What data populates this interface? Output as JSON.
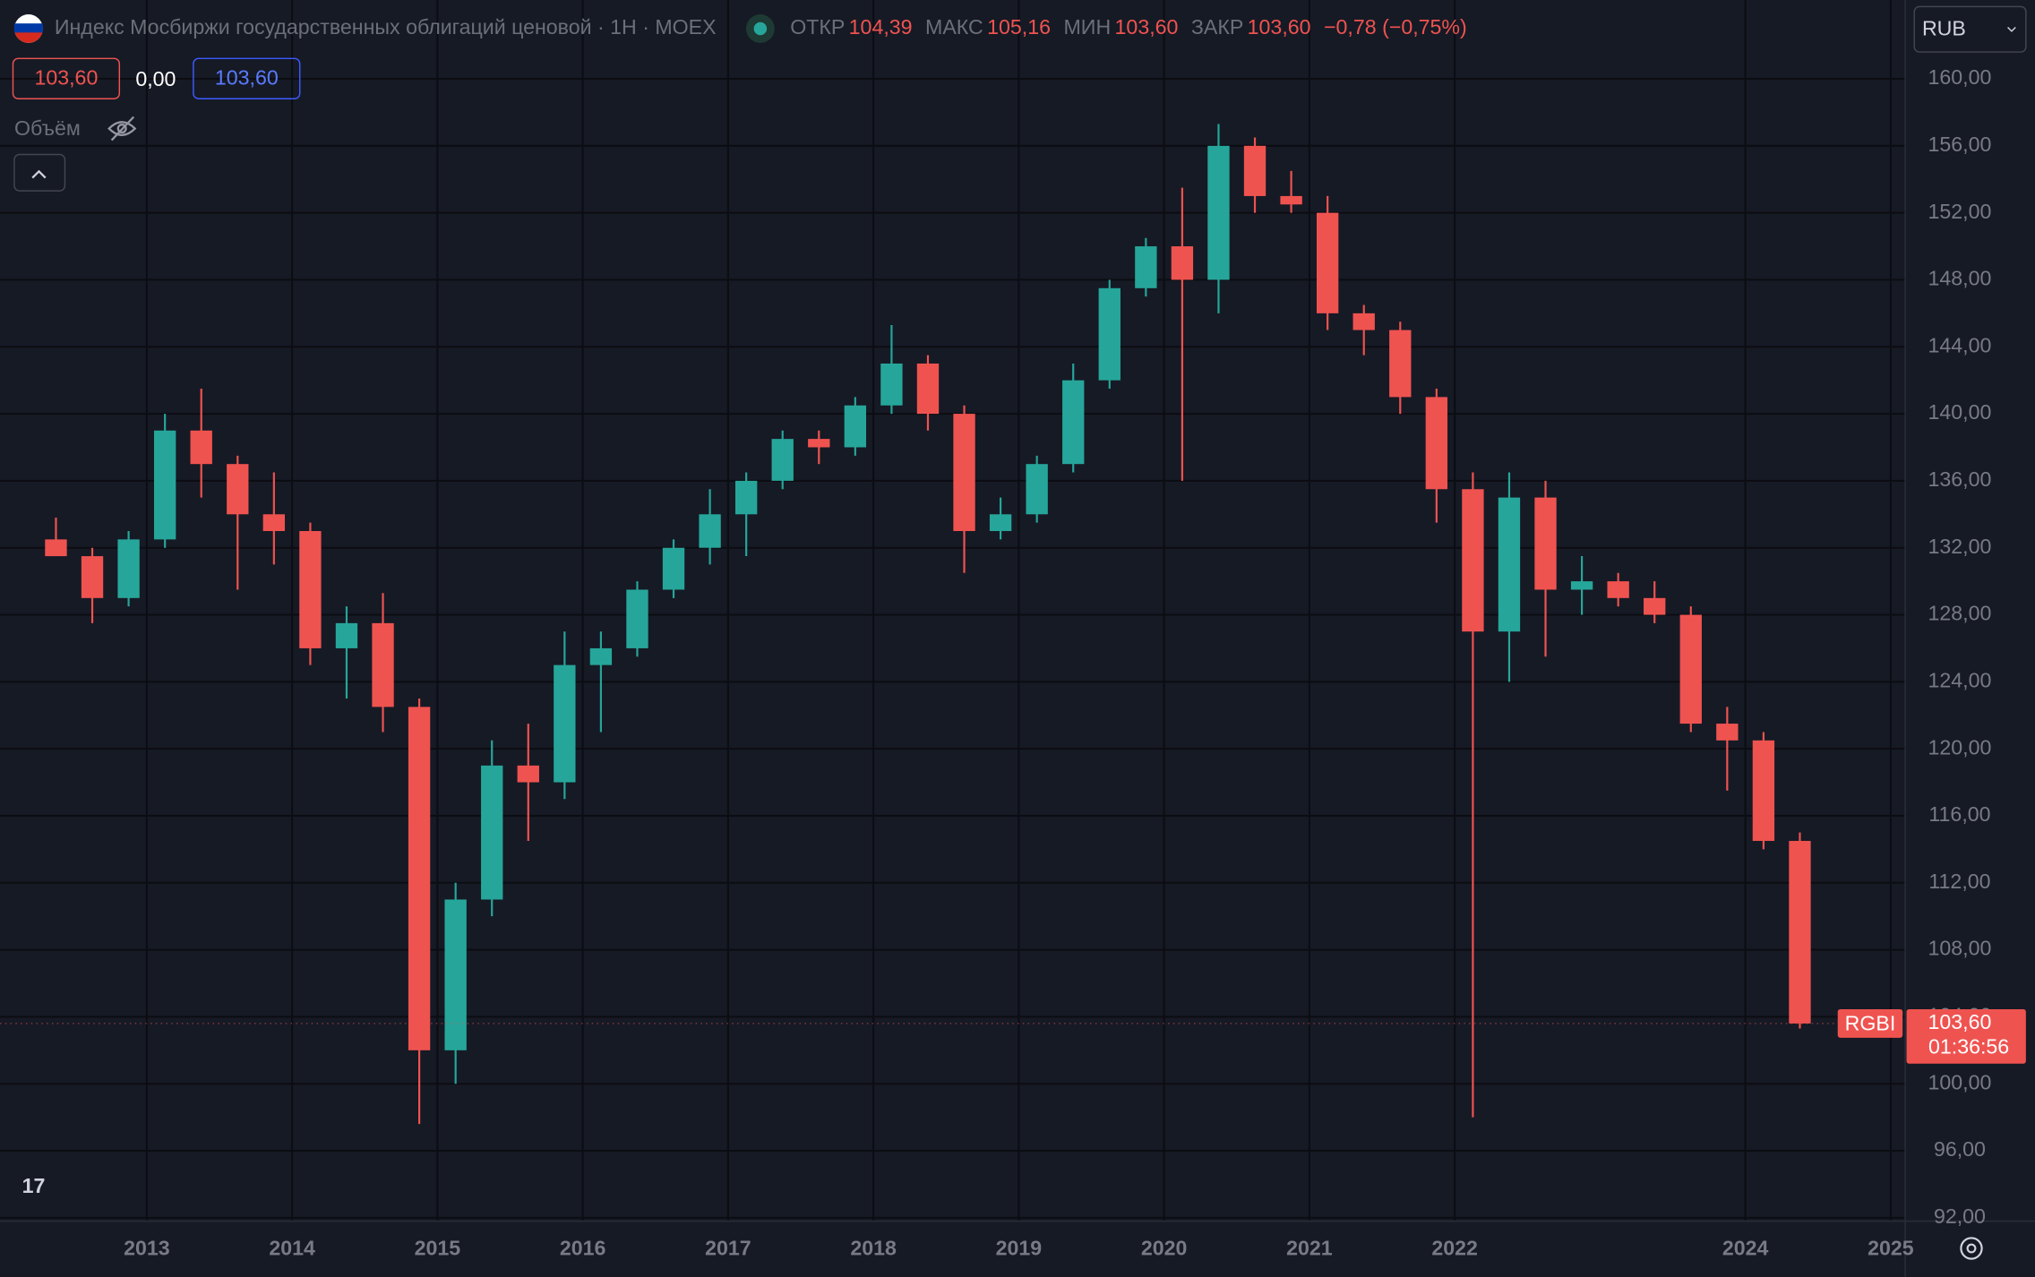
{
  "header": {
    "title": "Индекс Мосбиржи государственных облигаций ценовой · 1Н · MOEX",
    "open_label": "ОТКР",
    "open": "104,39",
    "high_label": "МАКС",
    "high": "105,16",
    "low_label": "МИН",
    "low": "103,60",
    "close_label": "ЗАКР",
    "close": "103,60",
    "change": "−0,78 (−0,75%)",
    "legend_values": [
      "103,60",
      "0,00",
      "103,60"
    ],
    "volume_label": "Объём",
    "currency": "RUB"
  },
  "chart_data": {
    "type": "candlestick",
    "up_color": "#26a69a",
    "down_color": "#ef5350",
    "x": [
      2012.25,
      2012.5,
      2012.75,
      2013.0,
      2013.25,
      2013.5,
      2013.75,
      2014.0,
      2014.25,
      2014.5,
      2014.75,
      2015.0,
      2015.25,
      2015.5,
      2015.75,
      2016.0,
      2016.25,
      2016.5,
      2016.75,
      2017.0,
      2017.25,
      2017.5,
      2017.75,
      2018.0,
      2018.25,
      2018.5,
      2018.75,
      2019.0,
      2019.25,
      2019.5,
      2019.75,
      2020.0,
      2020.25,
      2020.5,
      2020.75,
      2021.0,
      2021.25,
      2021.5,
      2021.75,
      2022.0,
      2022.25,
      2022.5,
      2022.75,
      2023.0,
      2023.25,
      2023.5,
      2023.75,
      2024.0,
      2024.25
    ],
    "open": [
      132.5,
      131.5,
      129,
      132.5,
      139,
      137,
      134,
      133,
      126,
      127.5,
      122.5,
      102,
      111,
      119,
      118,
      125,
      126,
      129.5,
      132,
      134,
      136,
      138.5,
      138,
      140.5,
      143,
      140,
      133,
      134,
      137,
      142,
      147.5,
      150,
      148,
      156,
      153,
      152,
      146,
      145,
      141,
      135.5,
      127,
      135,
      129.5,
      130,
      129,
      128,
      121.5,
      120.5,
      114.5
    ],
    "high": [
      133.8,
      132,
      133,
      140,
      141.5,
      137.5,
      136.5,
      133.5,
      128.5,
      129.3,
      123,
      112,
      120.5,
      121.5,
      127,
      127,
      130,
      132.5,
      135.5,
      136.5,
      139,
      139,
      141,
      145.3,
      143.5,
      140.5,
      135,
      137.5,
      143,
      148,
      150.5,
      153.5,
      157.3,
      156.5,
      154.5,
      153,
      146.5,
      145.5,
      141.5,
      136.5,
      136.5,
      136,
      131.5,
      130.5,
      130,
      128.5,
      122.5,
      121,
      115
    ],
    "low": [
      131.5,
      127.5,
      128.5,
      132,
      135,
      129.5,
      131,
      125,
      123,
      121,
      97.6,
      100,
      110,
      114.5,
      117,
      121,
      125.5,
      129,
      131,
      131.5,
      135.5,
      137,
      137.5,
      140,
      139,
      130.5,
      132.5,
      133.5,
      136.5,
      141.5,
      147,
      136,
      146,
      152,
      152,
      145,
      143.5,
      140,
      133.5,
      98,
      124,
      125.5,
      128,
      128.5,
      127.5,
      121,
      117.5,
      114,
      103.3
    ],
    "close": [
      131.5,
      129,
      132.5,
      139,
      137,
      134,
      133,
      126,
      127.5,
      122.5,
      102,
      111,
      119,
      118,
      125,
      126,
      129.5,
      132,
      134,
      136,
      138.5,
      138,
      140.5,
      143,
      140,
      133,
      134,
      137,
      142,
      147.5,
      150,
      148,
      156,
      153,
      152.5,
      146,
      145,
      141,
      135.5,
      127,
      135,
      129.5,
      130,
      129,
      128,
      121.5,
      120.5,
      114.5,
      103.6
    ],
    "xlim": [
      2011.99,
      2025.1
    ],
    "ylim": [
      91.8,
      164.7
    ],
    "xticks": [
      2013,
      2014,
      2015,
      2016,
      2017,
      2018,
      2019,
      2020,
      2021,
      2022,
      2024,
      2025
    ],
    "yticks": [
      {
        "value": 92,
        "label": "92,00"
      },
      {
        "value": 96,
        "label": "96,00"
      },
      {
        "value": 100,
        "label": "100,00"
      },
      {
        "value": 104,
        "label": "104,00"
      },
      {
        "value": 108,
        "label": "108,00"
      },
      {
        "value": 112,
        "label": "112,00"
      },
      {
        "value": 116,
        "label": "116,00"
      },
      {
        "value": 120,
        "label": "120,00"
      },
      {
        "value": 124,
        "label": "124,00"
      },
      {
        "value": 128,
        "label": "128,00"
      },
      {
        "value": 132,
        "label": "132,00"
      },
      {
        "value": 136,
        "label": "136,00"
      },
      {
        "value": 140,
        "label": "140,00"
      },
      {
        "value": 144,
        "label": "144,00"
      },
      {
        "value": 148,
        "label": "148,00"
      },
      {
        "value": 152,
        "label": "152,00"
      },
      {
        "value": 156,
        "label": "156,00"
      },
      {
        "value": 160,
        "label": "160,00"
      }
    ],
    "grid": true,
    "price_label": {
      "symbol": "RGBI",
      "value": 103.6,
      "label": "103,60",
      "countdown": "01:36:56"
    }
  }
}
